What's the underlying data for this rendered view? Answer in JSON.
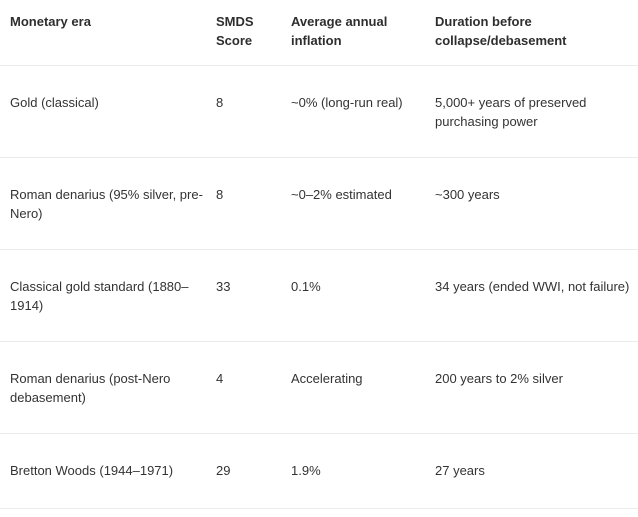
{
  "headers": [
    "Monetary era",
    "SMDS Score",
    "Average annual inflation",
    "Duration before collapse/debasement"
  ],
  "rows": [
    {
      "era": "Gold (classical)",
      "score": "8",
      "inflation": "~0% (long-run real)",
      "duration": "5,000+ years of preserved purchasing power"
    },
    {
      "era": "Roman denarius (95% silver, pre-Nero)",
      "score": "8",
      "inflation": "~0–2% estimated",
      "duration": "~300 years"
    },
    {
      "era": "Classical gold standard (1880–1914)",
      "score": "33",
      "inflation": "0.1%",
      "duration": "34 years (ended WWI, not failure)"
    },
    {
      "era": "Roman denarius (post-Nero debasement)",
      "score": "4",
      "inflation": "Accelerating",
      "duration": "200 years to 2% silver"
    },
    {
      "era": "Bretton Woods (1944–1971)",
      "score": "29",
      "inflation": "1.9%",
      "duration": "27 years"
    }
  ]
}
